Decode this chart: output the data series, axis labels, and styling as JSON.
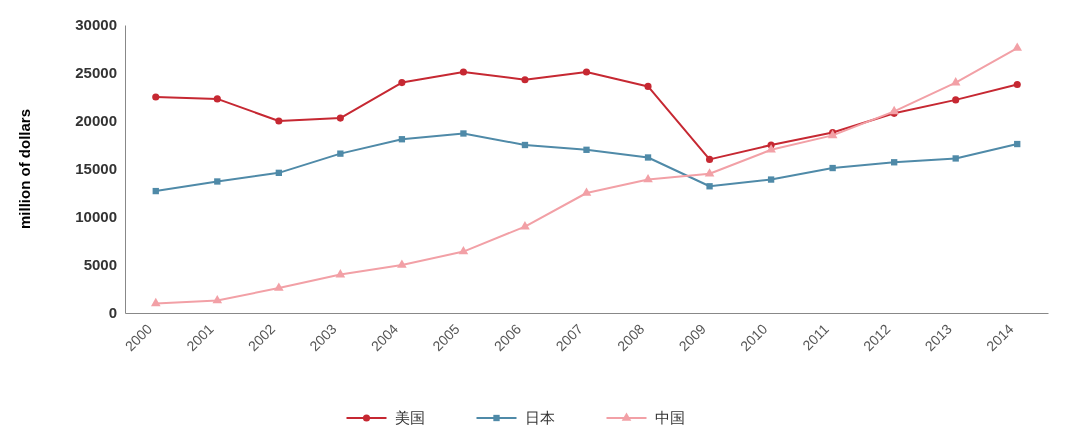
{
  "chart_data": {
    "type": "line",
    "ylabel": "million of dollars",
    "categories": [
      "2000",
      "2001",
      "2002",
      "2003",
      "2004",
      "2005",
      "2006",
      "2007",
      "2008",
      "2009",
      "2010",
      "2011",
      "2012",
      "2013",
      "2014"
    ],
    "ylim": [
      0,
      30000
    ],
    "yticks": [
      0,
      5000,
      10000,
      15000,
      20000,
      25000,
      30000
    ],
    "grid": false,
    "legend": "bottom",
    "line_style": "solid",
    "series": [
      {
        "name": "美国",
        "color": "#c62832",
        "marker": "circle",
        "values": [
          22500,
          22300,
          20000,
          20300,
          24000,
          25100,
          24300,
          25100,
          23600,
          16000,
          17500,
          18800,
          20800,
          22200,
          23800
        ]
      },
      {
        "name": "日本",
        "color": "#4f8aa8",
        "marker": "square",
        "values": [
          12700,
          13700,
          14600,
          16600,
          18100,
          18700,
          17500,
          17000,
          16200,
          13200,
          13900,
          15100,
          15700,
          16100,
          17600
        ]
      },
      {
        "name": "中国",
        "color": "#f2a0a6",
        "marker": "triangle",
        "values": [
          1000,
          1300,
          2600,
          4000,
          5000,
          6400,
          9000,
          12500,
          13900,
          14500,
          17000,
          18500,
          21000,
          24000,
          27600
        ]
      }
    ]
  }
}
